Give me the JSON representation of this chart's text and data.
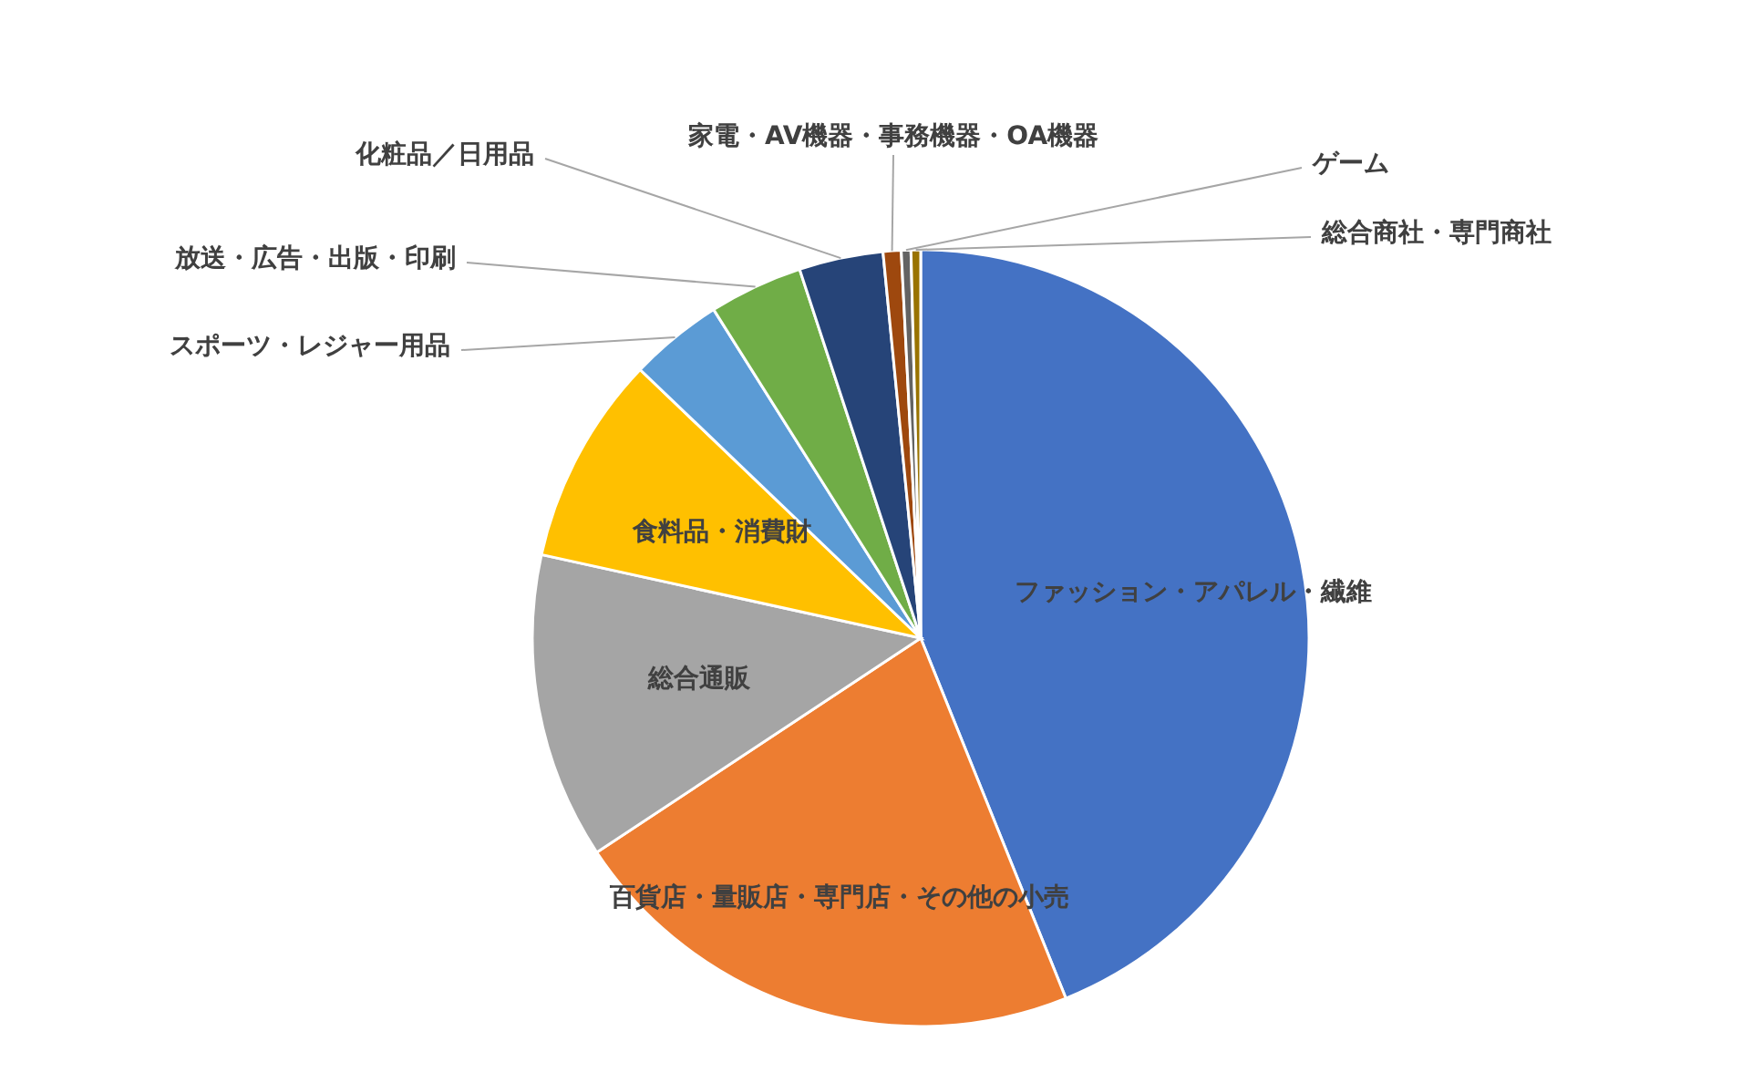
{
  "chart_data": {
    "type": "pie",
    "categories": [
      "ファッション・アパレル・繊維",
      "百貨店・量販店・専門店・その他の小売",
      "総合通販",
      "食料品・消費財",
      "スポーツ・レジャー用品",
      "放送・広告・出版・印刷",
      "化粧品／日用品",
      "家電・AV機器・事務機器・OA機器",
      "ゲーム",
      "総合商社・専門商社"
    ],
    "values": [
      43.9,
      21.8,
      12.75,
      8.7,
      3.9,
      3.9,
      3.5,
      0.75,
      0.4,
      0.4
    ],
    "colors": [
      "#4472c4",
      "#ed7d31",
      "#a5a5a5",
      "#ffc000",
      "#5b9bd5",
      "#70ad47",
      "#264478",
      "#9e480e",
      "#636363",
      "#997300"
    ]
  }
}
